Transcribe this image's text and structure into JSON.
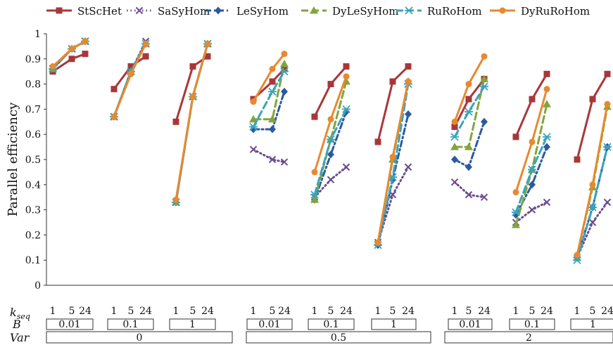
{
  "chart_data": {
    "type": "line",
    "ylabel": "Parallel efficiency",
    "ylim": [
      0,
      1
    ],
    "yticks": [
      0,
      0.1,
      0.2,
      0.3,
      0.4,
      0.5,
      0.6,
      0.7,
      0.8,
      0.9,
      1
    ],
    "ytick_labels": [
      "0",
      "0.1",
      "0.2",
      "0.3",
      "0.4",
      "0.5",
      "0.6",
      "0.7",
      "0.8",
      "0.9",
      "1"
    ],
    "grid": false,
    "legend_position": "top",
    "kseq_label": "k",
    "kseq_sub": "seq",
    "kseq_values": [
      "1",
      "5",
      "24"
    ],
    "b_label": "B",
    "var_label": "Var",
    "groups": [
      {
        "B": "0.01",
        "Var": "0"
      },
      {
        "B": "0.1",
        "Var": "0"
      },
      {
        "B": "1",
        "Var": "0"
      },
      {
        "B": "0.01",
        "Var": "0.5"
      },
      {
        "B": "0.1",
        "Var": "0.5"
      },
      {
        "B": "1",
        "Var": "0.5"
      },
      {
        "B": "0.01",
        "Var": "2"
      },
      {
        "B": "0.1",
        "Var": "2"
      },
      {
        "B": "1",
        "Var": "2"
      }
    ],
    "var_values": [
      "0",
      "0.5",
      "2"
    ],
    "series": [
      {
        "name": "StScHet",
        "color": "#a8373a",
        "marker": "square",
        "dash": "solid",
        "values": [
          [
            0.85,
            0.9,
            0.92
          ],
          [
            0.78,
            0.87,
            0.91
          ],
          [
            0.65,
            0.87,
            0.91
          ],
          [
            0.74,
            0.81,
            0.86
          ],
          [
            0.67,
            0.8,
            0.87
          ],
          [
            0.57,
            0.81,
            0.87
          ],
          [
            0.63,
            0.74,
            0.82
          ],
          [
            0.59,
            0.74,
            0.84
          ],
          [
            0.5,
            0.74,
            0.84
          ]
        ]
      },
      {
        "name": "SaSyHom",
        "color": "#6b4c8f",
        "marker": "x",
        "dash": "dot",
        "values": [
          [
            0.86,
            0.94,
            0.97
          ],
          [
            0.67,
            0.85,
            0.97
          ],
          [
            0.33,
            0.75,
            0.96
          ],
          [
            0.54,
            0.5,
            0.49
          ],
          [
            0.35,
            0.42,
            0.47
          ],
          [
            0.17,
            0.36,
            0.47
          ],
          [
            0.41,
            0.36,
            0.35
          ],
          [
            0.25,
            0.3,
            0.33
          ],
          [
            0.11,
            0.25,
            0.33
          ]
        ]
      },
      {
        "name": "LeSyHom",
        "color": "#2c5a9e",
        "marker": "diamond",
        "dash": "dashdot",
        "values": [
          [
            0.86,
            0.94,
            0.97
          ],
          [
            0.67,
            0.85,
            0.96
          ],
          [
            0.33,
            0.75,
            0.96
          ],
          [
            0.62,
            0.62,
            0.77
          ],
          [
            0.34,
            0.52,
            0.69
          ],
          [
            0.16,
            0.42,
            0.68
          ],
          [
            0.5,
            0.47,
            0.65
          ],
          [
            0.28,
            0.4,
            0.55
          ],
          [
            0.11,
            0.31,
            0.55
          ]
        ]
      },
      {
        "name": "DyLeSyHom",
        "color": "#82a53b",
        "marker": "triangle",
        "dash": "longdash",
        "values": [
          [
            0.86,
            0.94,
            0.97
          ],
          [
            0.67,
            0.85,
            0.96
          ],
          [
            0.33,
            0.75,
            0.96
          ],
          [
            0.66,
            0.66,
            0.88
          ],
          [
            0.34,
            0.58,
            0.81
          ],
          [
            0.17,
            0.5,
            0.81
          ],
          [
            0.55,
            0.55,
            0.82
          ],
          [
            0.24,
            0.46,
            0.72
          ],
          [
            0.12,
            0.39,
            0.71
          ]
        ]
      },
      {
        "name": "RuRoHom",
        "color": "#3ba3bd",
        "marker": "star",
        "dash": "longdash",
        "values": [
          [
            0.86,
            0.94,
            0.97
          ],
          [
            0.67,
            0.85,
            0.96
          ],
          [
            0.33,
            0.75,
            0.96
          ],
          [
            0.63,
            0.77,
            0.85
          ],
          [
            0.36,
            0.58,
            0.7
          ],
          [
            0.16,
            0.43,
            0.8
          ],
          [
            0.59,
            0.69,
            0.79
          ],
          [
            0.29,
            0.46,
            0.59
          ],
          [
            0.1,
            0.31,
            0.55
          ]
        ]
      },
      {
        "name": "DyRuRoHom",
        "color": "#e8892f",
        "marker": "circle",
        "dash": "solid",
        "values": [
          [
            0.87,
            0.94,
            0.97
          ],
          [
            0.67,
            0.84,
            0.96
          ],
          [
            0.34,
            0.75,
            0.96
          ],
          [
            0.73,
            0.86,
            0.92
          ],
          [
            0.45,
            0.66,
            0.83
          ],
          [
            0.17,
            0.51,
            0.81
          ],
          [
            0.65,
            0.8,
            0.91
          ],
          [
            0.37,
            0.57,
            0.78
          ],
          [
            0.12,
            0.4,
            0.72
          ]
        ]
      }
    ]
  }
}
